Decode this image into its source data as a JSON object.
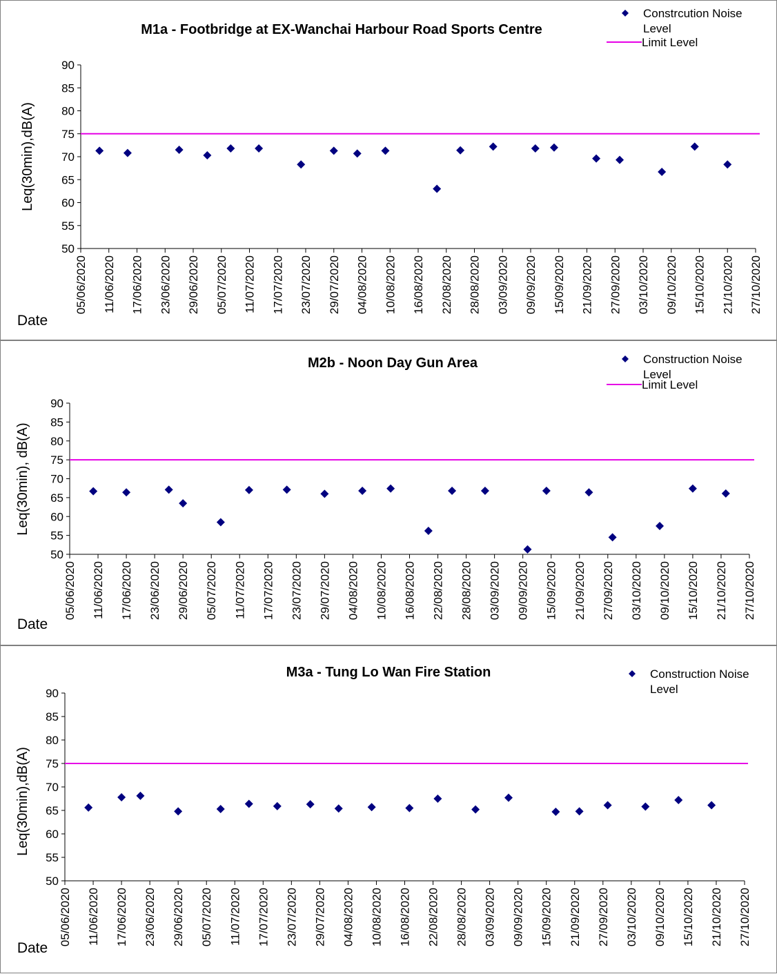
{
  "colors": {
    "marker": "#000080",
    "limit": "#e600e6",
    "axis": "#000000"
  },
  "chart_data": [
    {
      "type": "scatter",
      "title": "M1a - Footbridge at EX-Wanchai Harbour Road Sports Centre",
      "ylabel": "Leq(30min),dB(A)",
      "xlabel": "Date",
      "ylim": [
        50,
        90
      ],
      "yticks": [
        50,
        55,
        60,
        65,
        70,
        75,
        80,
        85,
        90
      ],
      "xlim": [
        "05/06/2020",
        "27/10/2020"
      ],
      "xticks": [
        "05/06/2020",
        "11/06/2020",
        "17/06/2020",
        "23/06/2020",
        "29/06/2020",
        "05/07/2020",
        "11/07/2020",
        "17/07/2020",
        "23/07/2020",
        "29/07/2020",
        "04/08/2020",
        "10/08/2020",
        "16/08/2020",
        "22/08/2020",
        "28/08/2020",
        "03/09/2020",
        "09/09/2020",
        "15/09/2020",
        "21/09/2020",
        "27/09/2020",
        "03/10/2020",
        "09/10/2020",
        "15/10/2020",
        "21/10/2020",
        "27/10/2020"
      ],
      "legend": {
        "marker_label": "Constrcution Noise Level",
        "line_label": "Limit Level",
        "position": "top-right"
      },
      "limit_level": 75,
      "series": [
        {
          "name": "Constrcution Noise Level",
          "points": [
            {
              "x": "09/06/2020",
              "y": 71.3
            },
            {
              "x": "15/06/2020",
              "y": 70.8
            },
            {
              "x": "26/06/2020",
              "y": 71.5
            },
            {
              "x": "02/07/2020",
              "y": 70.3
            },
            {
              "x": "07/07/2020",
              "y": 71.8
            },
            {
              "x": "13/07/2020",
              "y": 71.8
            },
            {
              "x": "22/07/2020",
              "y": 68.3
            },
            {
              "x": "29/07/2020",
              "y": 71.3
            },
            {
              "x": "03/08/2020",
              "y": 70.7
            },
            {
              "x": "09/08/2020",
              "y": 71.3
            },
            {
              "x": "20/08/2020",
              "y": 63.0
            },
            {
              "x": "25/08/2020",
              "y": 71.4
            },
            {
              "x": "01/09/2020",
              "y": 72.2
            },
            {
              "x": "10/09/2020",
              "y": 71.8
            },
            {
              "x": "14/09/2020",
              "y": 72.0
            },
            {
              "x": "23/09/2020",
              "y": 69.6
            },
            {
              "x": "28/09/2020",
              "y": 69.3
            },
            {
              "x": "07/10/2020",
              "y": 66.7
            },
            {
              "x": "14/10/2020",
              "y": 72.2
            },
            {
              "x": "21/10/2020",
              "y": 68.3
            }
          ]
        }
      ]
    },
    {
      "type": "scatter",
      "title": "M2b - Noon Day Gun Area",
      "ylabel": "Leq(30min), dB(A)",
      "xlabel": "Date",
      "ylim": [
        50,
        90
      ],
      "yticks": [
        50,
        55,
        60,
        65,
        70,
        75,
        80,
        85,
        90
      ],
      "xlim": [
        "05/06/2020",
        "27/10/2020"
      ],
      "xticks": [
        "05/06/2020",
        "11/06/2020",
        "17/06/2020",
        "23/06/2020",
        "29/06/2020",
        "05/07/2020",
        "11/07/2020",
        "17/07/2020",
        "23/07/2020",
        "29/07/2020",
        "04/08/2020",
        "10/08/2020",
        "16/08/2020",
        "22/08/2020",
        "28/08/2020",
        "03/09/2020",
        "09/09/2020",
        "15/09/2020",
        "21/09/2020",
        "27/09/2020",
        "03/10/2020",
        "09/10/2020",
        "15/10/2020",
        "21/10/2020",
        "27/10/2020"
      ],
      "legend": {
        "marker_label": "Construction Noise Level",
        "line_label": "Limit Level",
        "position": "top-right"
      },
      "limit_level": 75,
      "series": [
        {
          "name": "Construction Noise Level",
          "points": [
            {
              "x": "10/06/2020",
              "y": 66.7
            },
            {
              "x": "17/06/2020",
              "y": 66.4
            },
            {
              "x": "26/06/2020",
              "y": 67.1
            },
            {
              "x": "29/06/2020",
              "y": 63.5
            },
            {
              "x": "07/07/2020",
              "y": 58.5
            },
            {
              "x": "13/07/2020",
              "y": 67.0
            },
            {
              "x": "21/07/2020",
              "y": 67.1
            },
            {
              "x": "29/07/2020",
              "y": 66.0
            },
            {
              "x": "06/08/2020",
              "y": 66.8
            },
            {
              "x": "12/08/2020",
              "y": 67.4
            },
            {
              "x": "20/08/2020",
              "y": 56.2
            },
            {
              "x": "25/08/2020",
              "y": 66.8
            },
            {
              "x": "01/09/2020",
              "y": 66.8
            },
            {
              "x": "10/09/2020",
              "y": 51.3
            },
            {
              "x": "14/09/2020",
              "y": 66.8
            },
            {
              "x": "23/09/2020",
              "y": 66.4
            },
            {
              "x": "28/09/2020",
              "y": 54.5
            },
            {
              "x": "08/10/2020",
              "y": 57.5
            },
            {
              "x": "15/10/2020",
              "y": 67.4
            },
            {
              "x": "22/10/2020",
              "y": 66.1
            }
          ]
        }
      ]
    },
    {
      "type": "scatter",
      "title": "M3a - Tung Lo Wan Fire Station",
      "ylabel": "Leq(30min),dB(A)",
      "xlabel": "Date",
      "ylim": [
        50,
        90
      ],
      "yticks": [
        50,
        55,
        60,
        65,
        70,
        75,
        80,
        85,
        90
      ],
      "xlim": [
        "05/06/2020",
        "27/10/2020"
      ],
      "xticks": [
        "05/06/2020",
        "11/06/2020",
        "17/06/2020",
        "23/06/2020",
        "29/06/2020",
        "05/07/2020",
        "11/07/2020",
        "17/07/2020",
        "23/07/2020",
        "29/07/2020",
        "04/08/2020",
        "10/08/2020",
        "16/08/2020",
        "22/08/2020",
        "28/08/2020",
        "03/09/2020",
        "09/09/2020",
        "15/09/2020",
        "21/09/2020",
        "27/09/2020",
        "03/10/2020",
        "09/10/2020",
        "15/10/2020",
        "21/10/2020",
        "27/10/2020"
      ],
      "legend": {
        "marker_label": "Construction Noise Level",
        "position": "top-right"
      },
      "limit_level": 75,
      "series": [
        {
          "name": "Construction Noise Level",
          "points": [
            {
              "x": "10/06/2020",
              "y": 65.6
            },
            {
              "x": "17/06/2020",
              "y": 67.8
            },
            {
              "x": "21/06/2020",
              "y": 68.1
            },
            {
              "x": "29/06/2020",
              "y": 64.8
            },
            {
              "x": "08/07/2020",
              "y": 65.3
            },
            {
              "x": "14/07/2020",
              "y": 66.4
            },
            {
              "x": "20/07/2020",
              "y": 65.9
            },
            {
              "x": "27/07/2020",
              "y": 66.3
            },
            {
              "x": "02/08/2020",
              "y": 65.4
            },
            {
              "x": "09/08/2020",
              "y": 65.7
            },
            {
              "x": "17/08/2020",
              "y": 65.5
            },
            {
              "x": "23/08/2020",
              "y": 67.5
            },
            {
              "x": "31/08/2020",
              "y": 65.2
            },
            {
              "x": "07/09/2020",
              "y": 67.7
            },
            {
              "x": "17/09/2020",
              "y": 64.7
            },
            {
              "x": "22/09/2020",
              "y": 64.8
            },
            {
              "x": "28/09/2020",
              "y": 66.1
            },
            {
              "x": "06/10/2020",
              "y": 65.8
            },
            {
              "x": "13/10/2020",
              "y": 67.2
            },
            {
              "x": "20/10/2020",
              "y": 66.1
            }
          ]
        }
      ]
    }
  ]
}
